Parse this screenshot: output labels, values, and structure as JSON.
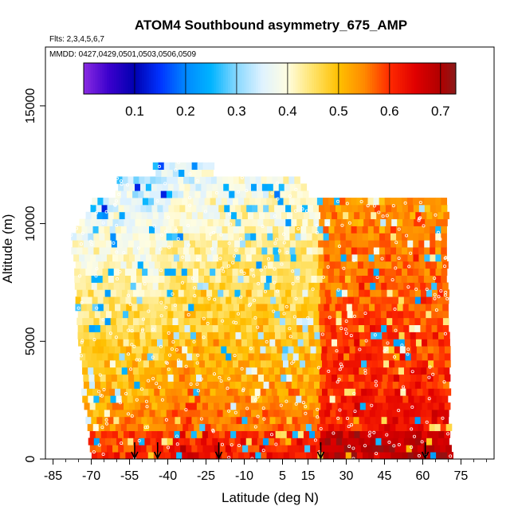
{
  "chart_data": {
    "type": "heatmap",
    "title": "ATOM4 Southbound asymmetry_675_AMP",
    "flights_note": "Flts: 2,3,4,5,6,7",
    "dates_note": "MMDD: 0427,0429,0501,0503,0506,0509",
    "xlabel": "Latitude (deg N)",
    "ylabel": "Altitude (m)",
    "xlim": [
      -88,
      88
    ],
    "ylim": [
      0,
      17500
    ],
    "x_ticks": [
      -85,
      -70,
      -55,
      -40,
      -25,
      -10,
      5,
      15,
      30,
      45,
      60,
      75
    ],
    "y_ticks": [
      0,
      5000,
      10000,
      15000
    ],
    "colorbar": {
      "range": [
        0.0,
        0.73
      ],
      "ticks": [
        0.1,
        0.2,
        0.3,
        0.4,
        0.5,
        0.6,
        0.7
      ],
      "stops": [
        {
          "v": 0.0,
          "color": "#8a2be2"
        },
        {
          "v": 0.05,
          "color": "#3a00cc"
        },
        {
          "v": 0.1,
          "color": "#0000b0"
        },
        {
          "v": 0.15,
          "color": "#0033ff"
        },
        {
          "v": 0.2,
          "color": "#0088ff"
        },
        {
          "v": 0.25,
          "color": "#00b4ff"
        },
        {
          "v": 0.3,
          "color": "#88d8ff"
        },
        {
          "v": 0.35,
          "color": "#dff2ff"
        },
        {
          "v": 0.4,
          "color": "#fffde0"
        },
        {
          "v": 0.45,
          "color": "#ffe36a"
        },
        {
          "v": 0.5,
          "color": "#ffc000"
        },
        {
          "v": 0.55,
          "color": "#ff8a00"
        },
        {
          "v": 0.6,
          "color": "#ff2a00"
        },
        {
          "v": 0.65,
          "color": "#e00000"
        },
        {
          "v": 0.7,
          "color": "#b00000"
        },
        {
          "v": 0.73,
          "color": "#8b1a1a"
        }
      ]
    },
    "profile_arrows_lat": [
      -53,
      -44,
      -20,
      20,
      61
    ],
    "grid": false
  }
}
